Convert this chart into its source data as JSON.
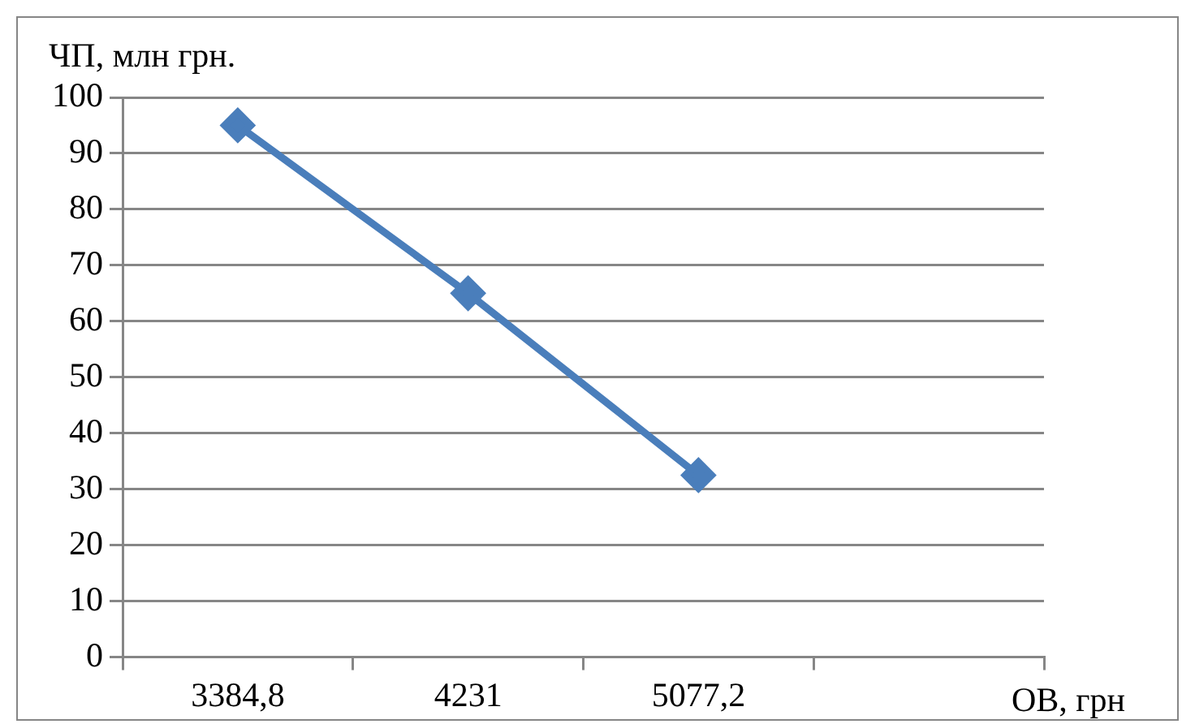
{
  "chart_data": {
    "type": "line",
    "ylabel": "ЧП, млн грн.",
    "xlabel": "ОВ, грн",
    "categories": [
      "3384,8",
      "4231",
      "5077,2",
      null
    ],
    "series": [
      {
        "color": "#4a7ebb",
        "values": [
          95,
          65,
          32.5,
          null
        ]
      }
    ],
    "ylim": [
      0,
      100
    ],
    "yticks": [
      0,
      10,
      20,
      30,
      40,
      50,
      60,
      70,
      80,
      90,
      100
    ],
    "grid": "y",
    "legend": false,
    "marker": "diamond",
    "line_style": "solid"
  }
}
